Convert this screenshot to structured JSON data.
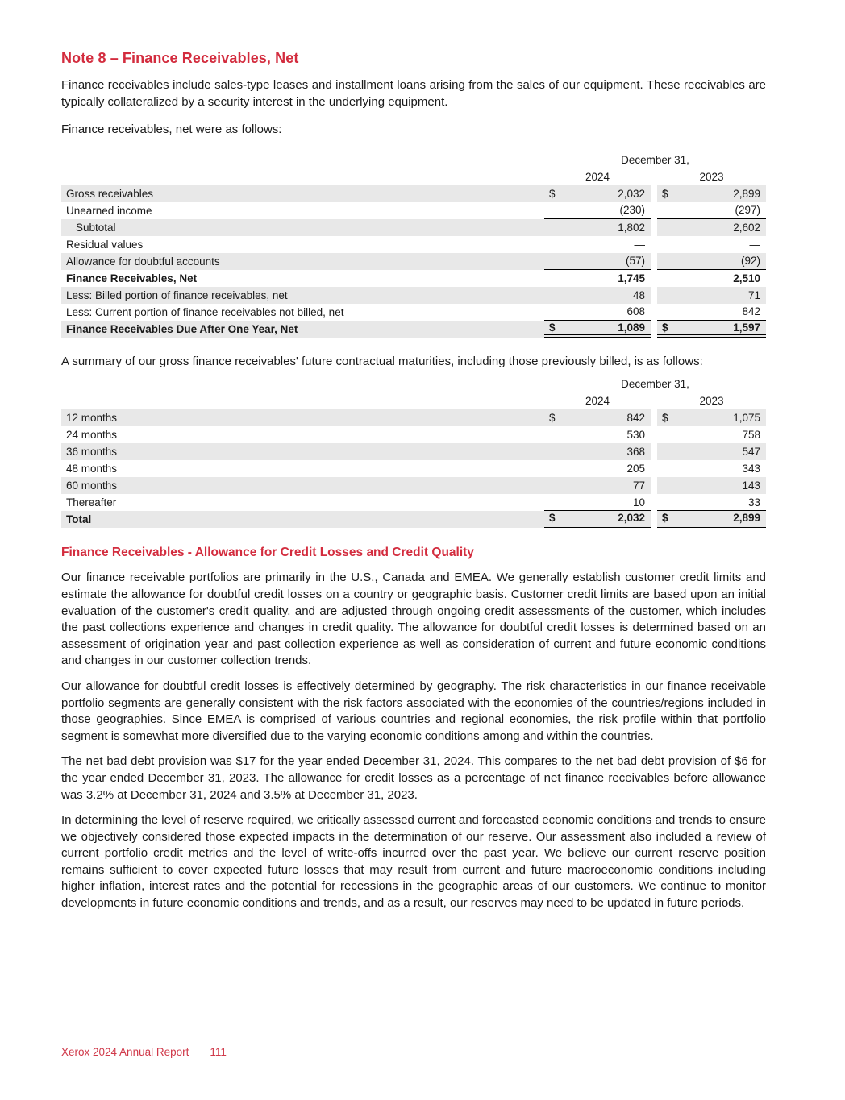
{
  "colors": {
    "accent_red": "#d32c3e",
    "row_shade": "#e8e8e8",
    "text": "#1a1a1a"
  },
  "document": {
    "title": "Note 8 – Finance Receivables, Net",
    "intro": "Finance receivables include sales-type leases and installment loans arising from the sales of our equipment. These receivables are typically collateralized by a security interest in the underlying equipment.",
    "lead_1": "Finance receivables, net were as follows:",
    "lead_2": "A summary of our gross finance receivables' future contractual maturities, including those previously billed, is as follows:",
    "subheading": "Finance Receivables - Allowance for Credit Losses and Credit Quality",
    "paragraphs": [
      "Our finance receivable portfolios are primarily in the U.S., Canada and EMEA. We generally establish customer credit limits and estimate the allowance for doubtful credit losses on a country or geographic basis. Customer credit limits are based upon an initial evaluation of the customer's credit quality, and are adjusted through ongoing credit assessments of the customer, which includes the past collections experience and changes in credit quality. The allowance for doubtful credit losses is determined based on an assessment of origination year and past collection experience as well as consideration of current and future economic conditions and changes in our customer collection trends.",
      "Our allowance for doubtful credit losses is effectively determined by geography. The risk characteristics in our finance receivable portfolio segments are generally consistent with the risk factors associated with the economies of the countries/regions included in those geographies. Since EMEA is comprised of various countries and regional economies, the risk profile within that portfolio segment is somewhat more diversified due to the varying economic conditions among and within the countries.",
      "The net bad debt provision was $17 for the year ended December 31, 2024. This compares to the net bad debt provision of $6 for the year ended December 31, 2023. The allowance for credit losses as a percentage of net finance receivables before allowance was 3.2% at December 31, 2024 and 3.5% at December 31, 2023.",
      "In determining the level of reserve required, we critically assessed current and forecasted economic conditions and trends to ensure we objectively considered those expected impacts in the determination of our reserve. Our assessment also included a review of current portfolio credit metrics and the level of write-offs incurred over the past year. We believe our current reserve position remains sufficient to cover expected future losses that may result from current and future macroeconomic conditions including higher inflation, interest rates and the potential for recessions in the geographic areas of our customers. We continue to monitor developments in future economic conditions and trends, and as a result, our reserves may need to be updated in future periods."
    ],
    "footer": {
      "report": "Xerox 2024 Annual Report",
      "page_number": "111"
    }
  },
  "tables": [
    {
      "id": "finance-receivables-net",
      "period_header": "December 31,",
      "year_columns": [
        "2024",
        "2023"
      ],
      "dollar_symbol": "$",
      "rows": [
        {
          "label": "Gross receivables",
          "values": [
            "2,032",
            "2,899"
          ],
          "dollar": true,
          "shaded": true
        },
        {
          "label": "Unearned income",
          "values": [
            "(230)",
            "(297)"
          ],
          "border": "single"
        },
        {
          "label": "Subtotal",
          "values": [
            "1,802",
            "2,602"
          ],
          "indent": true,
          "shaded": true
        },
        {
          "label": "Residual values",
          "values": [
            "—",
            "—"
          ]
        },
        {
          "label": "Allowance for doubtful accounts",
          "values": [
            "(57)",
            "(92)"
          ],
          "shaded": true,
          "border": "single"
        },
        {
          "label": "Finance Receivables, Net",
          "values": [
            "1,745",
            "2,510"
          ],
          "bold": true
        },
        {
          "label": "Less: Billed portion of finance receivables, net",
          "values": [
            "48",
            "71"
          ],
          "shaded": true
        },
        {
          "label": "Less: Current portion of finance receivables not billed, net",
          "values": [
            "608",
            "842"
          ],
          "border": "single"
        },
        {
          "label": "Finance Receivables Due After One Year, Net",
          "values": [
            "1,089",
            "1,597"
          ],
          "bold": true,
          "dollar": true,
          "shaded": true,
          "border": "double"
        }
      ]
    },
    {
      "id": "maturities",
      "period_header": "December 31,",
      "year_columns": [
        "2024",
        "2023"
      ],
      "dollar_symbol": "$",
      "rows": [
        {
          "label": "12 months",
          "values": [
            "842",
            "1,075"
          ],
          "dollar": true,
          "shaded": true
        },
        {
          "label": "24 months",
          "values": [
            "530",
            "758"
          ]
        },
        {
          "label": "36 months",
          "values": [
            "368",
            "547"
          ],
          "shaded": true
        },
        {
          "label": "48 months",
          "values": [
            "205",
            "343"
          ]
        },
        {
          "label": "60 months",
          "values": [
            "77",
            "143"
          ],
          "shaded": true
        },
        {
          "label": "Thereafter",
          "values": [
            "10",
            "33"
          ],
          "border": "single"
        },
        {
          "label": "Total",
          "values": [
            "2,032",
            "2,899"
          ],
          "bold": true,
          "dollar": true,
          "shaded": true,
          "border": "double"
        }
      ]
    }
  ]
}
